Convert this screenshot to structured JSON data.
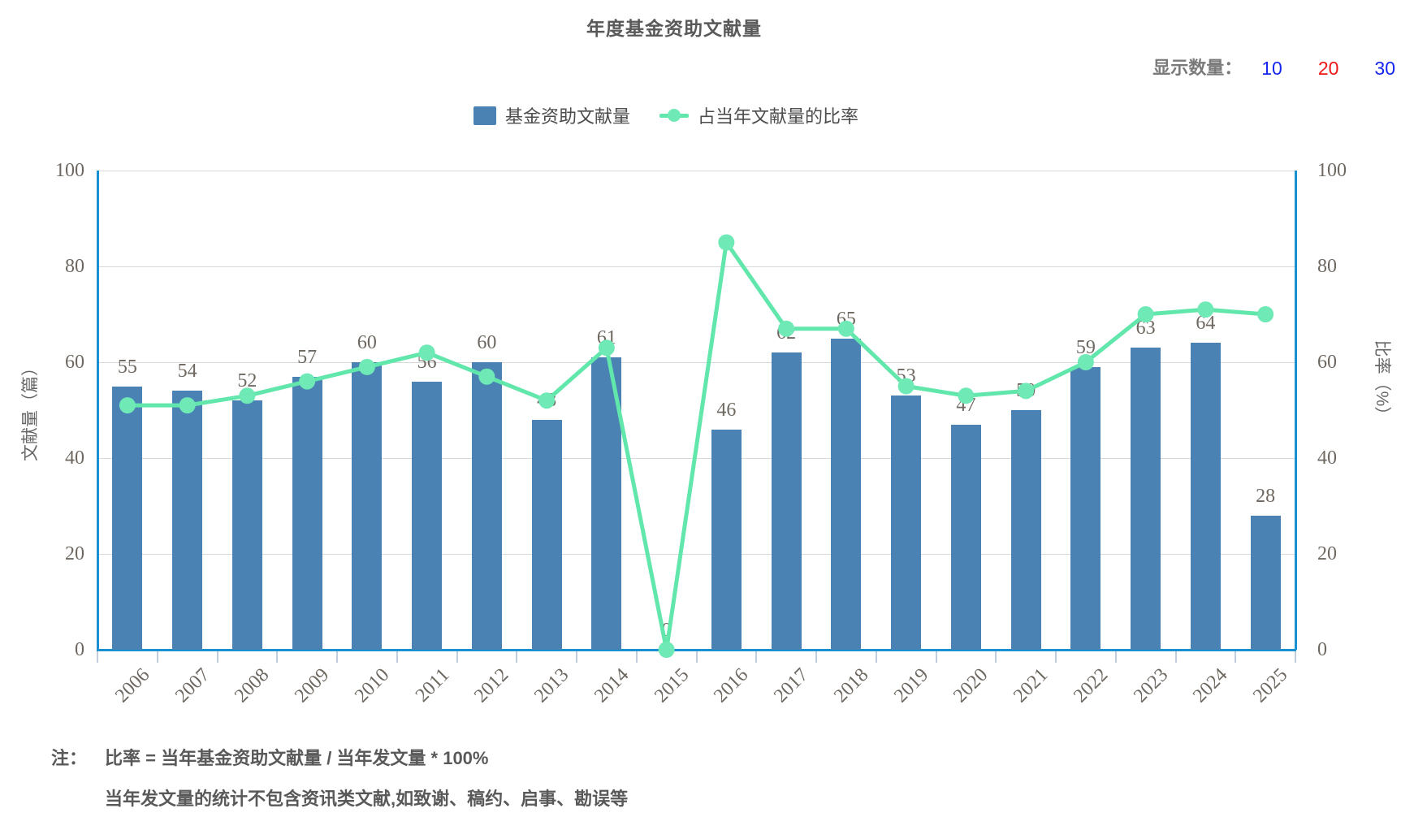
{
  "title": "年度基金资助文献量",
  "display_count": {
    "label": "显示数量：",
    "options": [
      {
        "value": "10",
        "color": "#1526ee",
        "selected": false
      },
      {
        "value": "20",
        "color": "#ee1515",
        "selected": true
      },
      {
        "value": "30",
        "color": "#1526ee",
        "selected": false
      }
    ]
  },
  "colors": {
    "bar": "#4a83b3",
    "line": "#61e6ab",
    "dot": "#6fe9b6",
    "axis_line": "#1991d1",
    "gridline": "#d9d9d9",
    "x_tick": "#bfcddd",
    "value_text": "#6e6861",
    "heading_text": "#595959"
  },
  "chart_data": {
    "type": "bar+line",
    "title": "年度基金资助文献量",
    "categories": [
      "2006",
      "2007",
      "2008",
      "2009",
      "2010",
      "2011",
      "2012",
      "2013",
      "2014",
      "2015",
      "2016",
      "2017",
      "2018",
      "2019",
      "2020",
      "2021",
      "2022",
      "2023",
      "2024",
      "2025"
    ],
    "series": [
      {
        "name": "基金资助文献量",
        "type": "bar",
        "yaxis": "left",
        "values": [
          55,
          54,
          52,
          57,
          60,
          56,
          60,
          48,
          61,
          0,
          46,
          62,
          65,
          53,
          47,
          50,
          59,
          63,
          64,
          28
        ]
      },
      {
        "name": "占当年文献量的比率",
        "type": "line",
        "yaxis": "right",
        "values": [
          51,
          51,
          53,
          56,
          59,
          62,
          57,
          52,
          63,
          0,
          85,
          67,
          67,
          55,
          53,
          54,
          60,
          70,
          71,
          70
        ]
      }
    ],
    "left_axis": {
      "name": "文献量（篇）",
      "min": 0,
      "max": 100,
      "ticks": [
        0,
        20,
        40,
        60,
        80,
        100
      ]
    },
    "right_axis": {
      "name": "比率（%）",
      "min": 0,
      "max": 100,
      "ticks": [
        0,
        20,
        40,
        60,
        80,
        100
      ]
    },
    "grid": true,
    "legend_position": "top-center",
    "bar_value_labels": true
  },
  "notes": {
    "prefix": "注：",
    "lines": [
      "比率 = 当年基金资助文献量 / 当年发文量 * 100%",
      "当年发文量的统计不包含资讯类文献,如致谢、稿约、启事、勘误等"
    ]
  }
}
